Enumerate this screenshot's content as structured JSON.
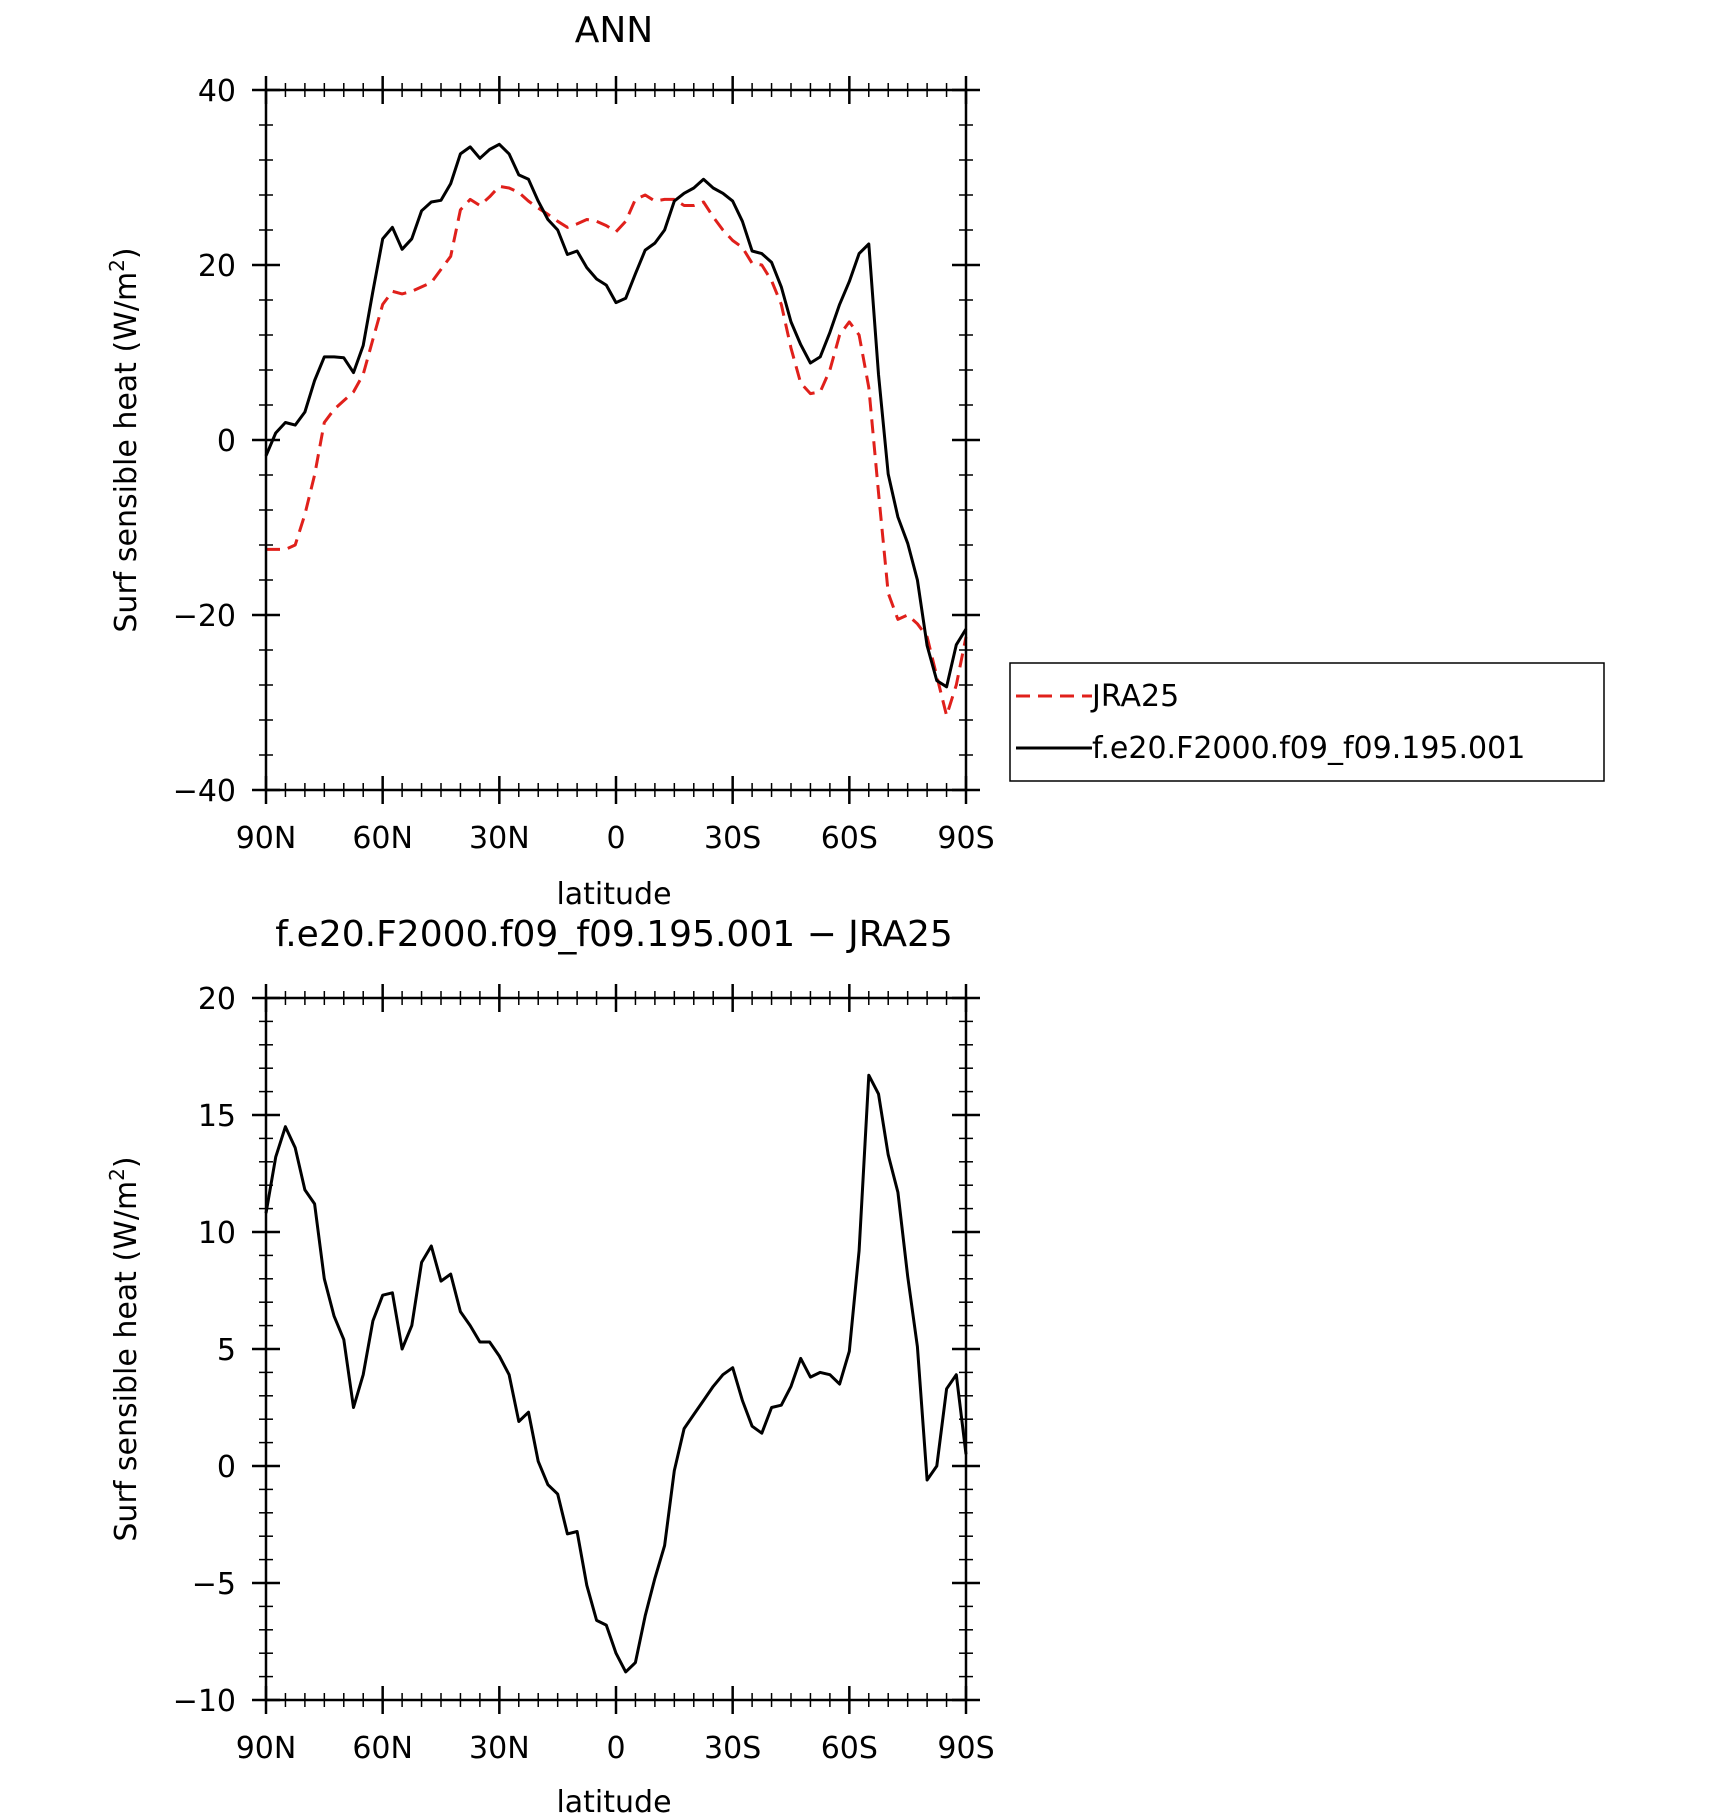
{
  "chart_data": [
    {
      "type": "line",
      "title": "ANN",
      "xlabel": "latitude",
      "ylabel": "Surf sensible heat (W/m",
      "ylabel_sup": "2",
      "ylabel_end": ")",
      "xlim": [
        90,
        -90
      ],
      "ylim": [
        -40,
        40
      ],
      "xticks": [
        90,
        60,
        30,
        0,
        -30,
        -60,
        -90
      ],
      "xtick_labels": [
        "90N",
        "60N",
        "30N",
        "0",
        "30S",
        "60S",
        "90S"
      ],
      "yticks": [
        -40,
        -20,
        0,
        20,
        40
      ],
      "ytick_labels": [
        "−40",
        "−20",
        "0",
        "20",
        "40"
      ],
      "grid": false,
      "legend": "right",
      "series": [
        {
          "name": "JRA25",
          "color": "#e0201b",
          "dash": "dashed",
          "x": [
            90,
            87.5,
            85,
            82.5,
            80,
            77.5,
            75,
            72.5,
            70,
            67.5,
            65,
            62.5,
            60,
            57.5,
            55,
            52.5,
            50,
            47.5,
            45,
            42.5,
            40,
            37.5,
            35,
            32.5,
            30,
            27.5,
            25,
            22.5,
            20,
            17.5,
            15,
            12.5,
            10,
            7.5,
            5,
            2.5,
            0,
            -2.5,
            -5,
            -7.5,
            -10,
            -12.5,
            -15,
            -17.5,
            -20,
            -22.5,
            -25,
            -27.5,
            -30,
            -32.5,
            -35,
            -37.5,
            -40,
            -42.5,
            -45,
            -47.5,
            -50,
            -52.5,
            -55,
            -57.5,
            -60,
            -62.5,
            -65,
            -67.5,
            -70,
            -72.5,
            -75,
            -77.5,
            -80,
            -82.5,
            -85,
            -87.5,
            -90
          ],
          "values": [
            -12.5,
            -12.5,
            -12.5,
            -12,
            -8.5,
            -4,
            2,
            3.5,
            4.5,
            5.5,
            7.5,
            11.5,
            15.5,
            17,
            16.7,
            17,
            17.5,
            18,
            19.5,
            21,
            26.3,
            27.5,
            26.8,
            27.8,
            29,
            28.8,
            28.3,
            27.3,
            26.5,
            25.8,
            25,
            24.3,
            24.7,
            25.2,
            25,
            24.5,
            23.8,
            25,
            27.5,
            28,
            27.3,
            27.5,
            27.5,
            26.8,
            26.8,
            27.2,
            25.5,
            24,
            22.8,
            22,
            20.2,
            20,
            18.2,
            15.5,
            10.5,
            6.5,
            5.3,
            5.5,
            8,
            12,
            13.5,
            12,
            6,
            -6,
            -17.5,
            -20.5,
            -20,
            -21,
            -22.5,
            -27,
            -31.5,
            -28,
            -22.5
          ]
        },
        {
          "name": "f.e20.F2000.f09_f09.195.001",
          "color": "#000000",
          "dash": "solid",
          "x": [
            90,
            87.5,
            85,
            82.5,
            80,
            77.5,
            75,
            72.5,
            70,
            67.5,
            65,
            62.5,
            60,
            57.5,
            55,
            52.5,
            50,
            47.5,
            45,
            42.5,
            40,
            37.5,
            35,
            32.5,
            30,
            27.5,
            25,
            22.5,
            20,
            17.5,
            15,
            12.5,
            10,
            7.5,
            5,
            2.5,
            0,
            -2.5,
            -5,
            -7.5,
            -10,
            -12.5,
            -15,
            -17.5,
            -20,
            -22.5,
            -25,
            -27.5,
            -30,
            -32.5,
            -35,
            -37.5,
            -40,
            -42.5,
            -45,
            -47.5,
            -50,
            -52.5,
            -55,
            -57.5,
            -60,
            -62.5,
            -65,
            -67.5,
            -70,
            -72.5,
            -75,
            -77.5,
            -80,
            -82.5,
            -85,
            -87.5,
            -90
          ],
          "values": [
            -1.8,
            0.8,
            2,
            1.7,
            3.2,
            6.8,
            9.5,
            9.5,
            9.4,
            7.7,
            10.8,
            17,
            23,
            24.3,
            21.8,
            23,
            26.2,
            27.2,
            27.4,
            29.3,
            32.7,
            33.5,
            32.2,
            33.2,
            33.8,
            32.7,
            30.3,
            29.8,
            27.3,
            25.2,
            24,
            21.2,
            21.6,
            19.7,
            18.4,
            17.7,
            15.7,
            16.2,
            19,
            21.7,
            22.5,
            24,
            27.3,
            28.2,
            28.8,
            29.8,
            28.8,
            28.2,
            27.3,
            25,
            21.6,
            21.3,
            20.3,
            17.5,
            13.5,
            10.9,
            8.8,
            9.5,
            12.3,
            15.5,
            18.1,
            21.3,
            22.4,
            7.5,
            -3.9,
            -8.8,
            -11.8,
            -16,
            -23.5,
            -27.5,
            -28.2,
            -23.4,
            -21.6
          ]
        }
      ]
    },
    {
      "type": "line",
      "title": "f.e20.F2000.f09_f09.195.001 − JRA25",
      "xlabel": "latitude",
      "ylabel": "Surf sensible heat (W/m",
      "ylabel_sup": "2",
      "ylabel_end": ")",
      "xlim": [
        90,
        -90
      ],
      "ylim": [
        -10,
        20
      ],
      "xticks": [
        90,
        60,
        30,
        0,
        -30,
        -60,
        -90
      ],
      "xtick_labels": [
        "90N",
        "60N",
        "30N",
        "0",
        "30S",
        "60S",
        "90S"
      ],
      "yticks": [
        -10,
        -5,
        0,
        5,
        10,
        15,
        20
      ],
      "ytick_labels": [
        "−10",
        "−5",
        "0",
        "5",
        "10",
        "15",
        "20"
      ],
      "grid": false,
      "series": [
        {
          "color": "#000000",
          "dash": "solid",
          "x": [
            90,
            87.5,
            85,
            82.5,
            80,
            77.5,
            75,
            72.5,
            70,
            67.5,
            65,
            62.5,
            60,
            57.5,
            55,
            52.5,
            50,
            47.5,
            45,
            42.5,
            40,
            37.5,
            35,
            32.5,
            30,
            27.5,
            25,
            22.5,
            20,
            17.5,
            15,
            12.5,
            10,
            7.5,
            5,
            2.5,
            0,
            -2.5,
            -5,
            -7.5,
            -10,
            -12.5,
            -15,
            -17.5,
            -20,
            -22.5,
            -25,
            -27.5,
            -30,
            -32.5,
            -35,
            -37.5,
            -40,
            -42.5,
            -45,
            -47.5,
            -50,
            -52.5,
            -55,
            -57.5,
            -60,
            -62.5,
            -65,
            -67.5,
            -70,
            -72.5,
            -75,
            -77.5,
            -80,
            -82.5,
            -85,
            -87.5,
            -90
          ],
          "values": [
            10.8,
            13.2,
            14.5,
            13.6,
            11.8,
            11.2,
            8,
            6.4,
            5.4,
            2.5,
            3.9,
            6.2,
            7.3,
            7.4,
            5,
            6,
            8.7,
            9.4,
            7.9,
            8.2,
            6.6,
            6,
            5.3,
            5.3,
            4.7,
            3.9,
            1.9,
            2.3,
            0.2,
            -0.8,
            -1.2,
            -2.9,
            -2.8,
            -5.1,
            -6.6,
            -6.8,
            -8,
            -8.8,
            -8.4,
            -6.4,
            -4.8,
            -3.4,
            -0.2,
            1.6,
            2.2,
            2.8,
            3.4,
            3.9,
            4.2,
            2.8,
            1.7,
            1.4,
            2.5,
            2.6,
            3.4,
            4.6,
            3.8,
            4,
            3.9,
            3.5,
            4.9,
            9.2,
            16.7,
            15.9,
            13.3,
            11.7,
            8.1,
            5.1,
            -0.6,
            0,
            3.3,
            3.9,
            0.5
          ]
        }
      ]
    }
  ]
}
